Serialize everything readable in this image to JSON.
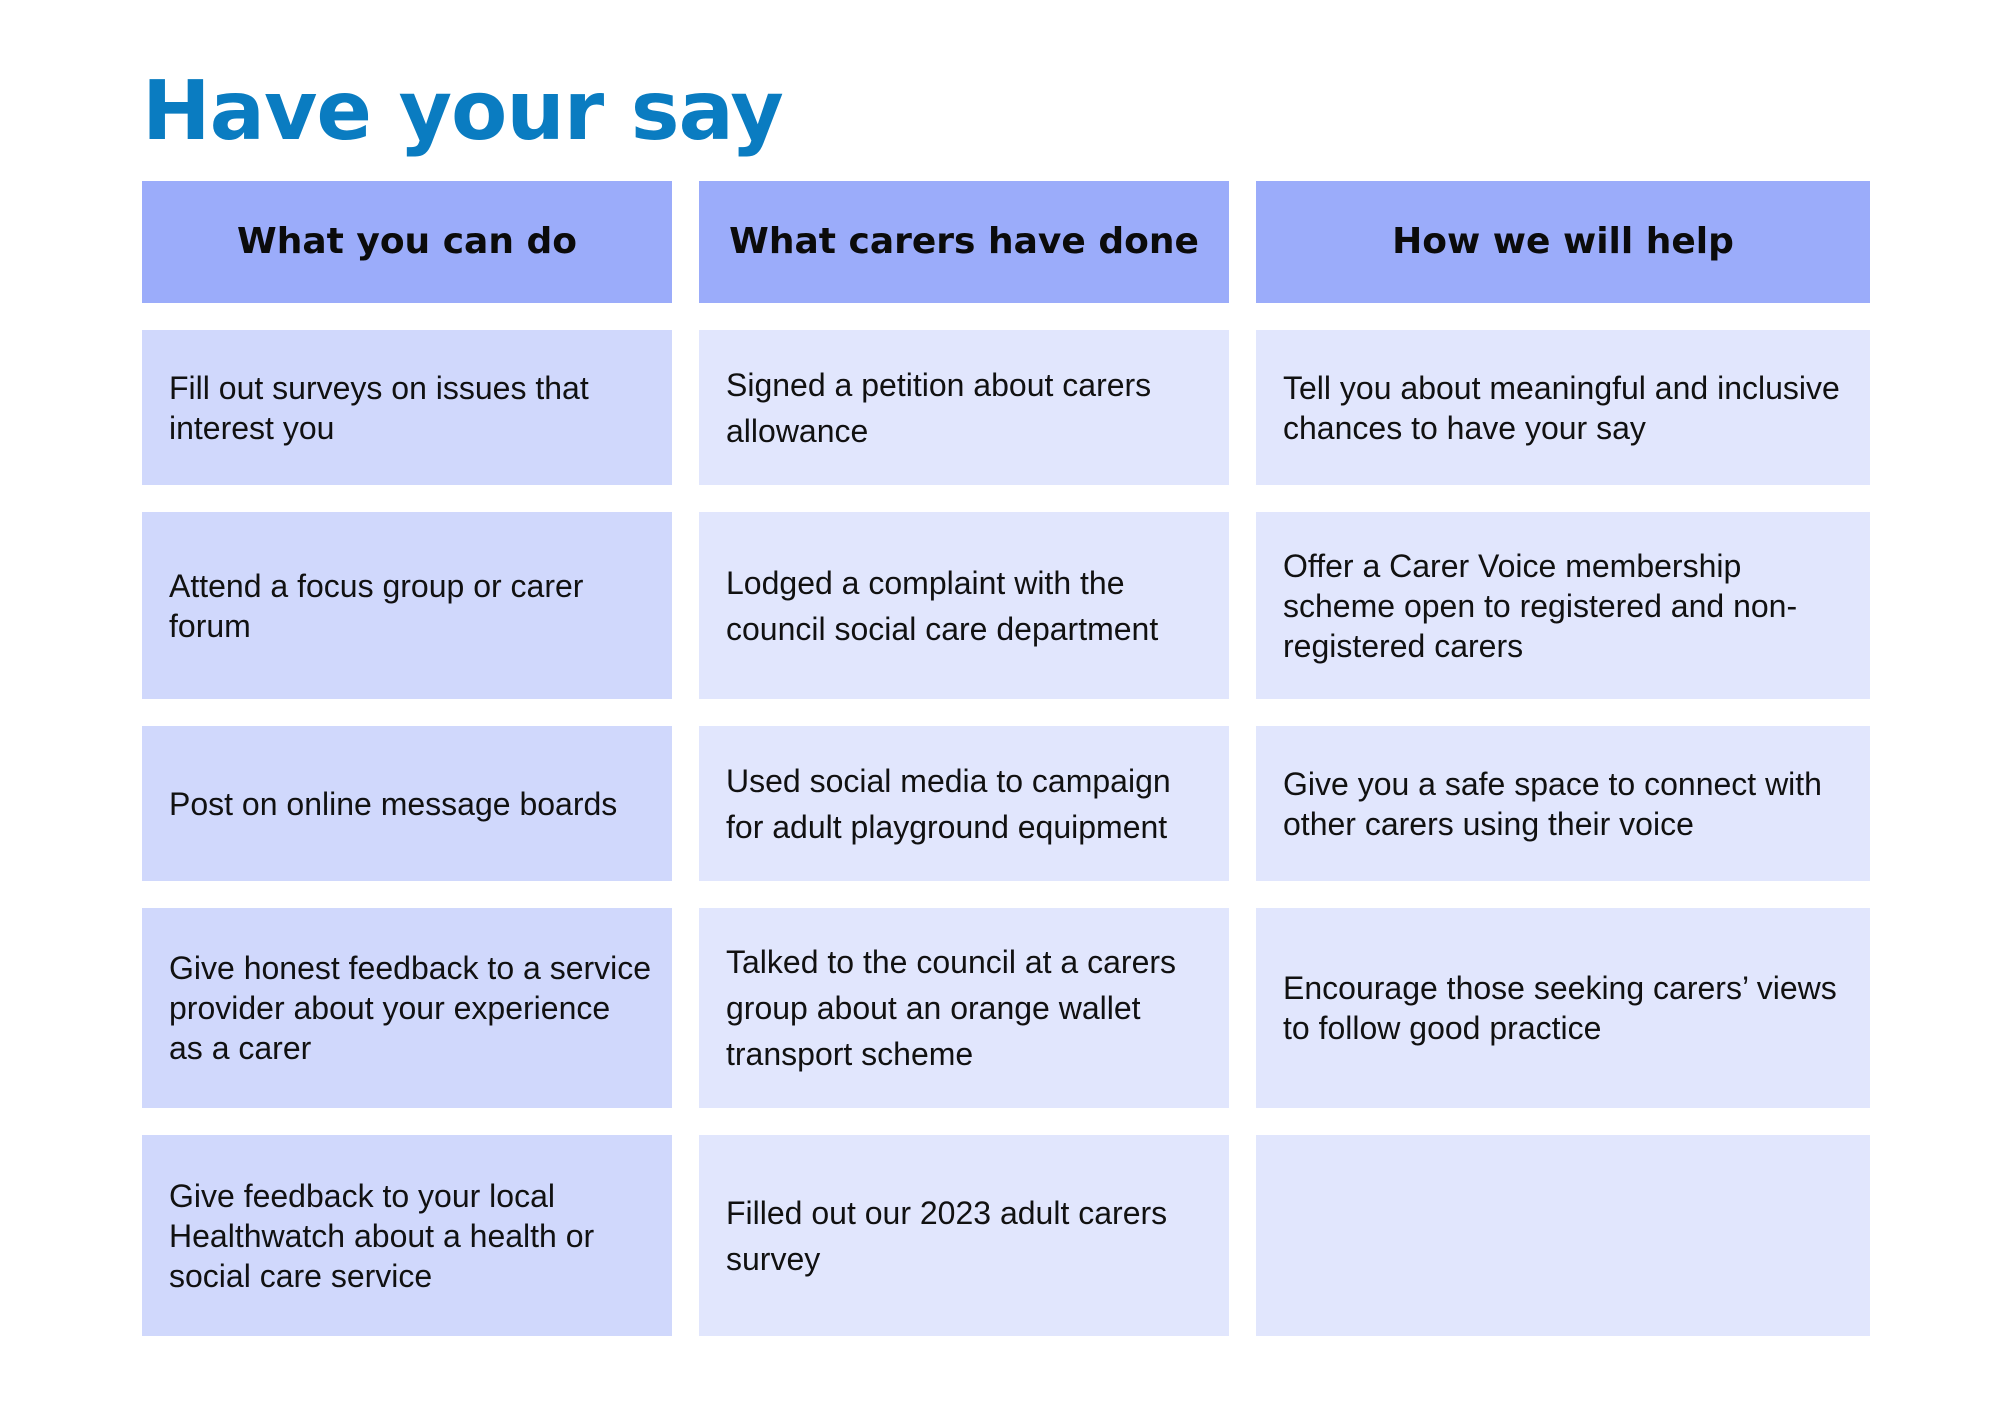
{
  "title": "Have your say",
  "colors": {
    "title": "#0a7cc1",
    "header_bg": "#9bacfa",
    "column1_bg": "#d0d8fc",
    "column2_bg": "#e1e6fd",
    "column3_bg": "#e1e6fd"
  },
  "headers": [
    "What you can do",
    "What carers have done",
    "How we will help"
  ],
  "rows": [
    [
      "Fill out surveys on issues that interest you",
      "Signed a petition about carers allowance",
      "Tell you about meaningful and inclusive chances to have your say"
    ],
    [
      "Attend a focus group or carer forum",
      "Lodged a complaint with the council social care department",
      "Offer a Carer Voice membership scheme open to registered and non-registered carers"
    ],
    [
      "Post on online message boards",
      "Used social media to campaign for adult playground equipment",
      "Give you a safe space to connect with other carers using their voice"
    ],
    [
      "Give honest feedback to a service provider about your experience as a carer",
      "Talked to the council at a carers group about an orange wallet transport scheme",
      "Encourage those seeking carers’ views to follow good practice"
    ],
    [
      "Give feedback to your local Healthwatch about a health or social care service",
      "Filled out our 2023 adult carers survey",
      ""
    ]
  ]
}
